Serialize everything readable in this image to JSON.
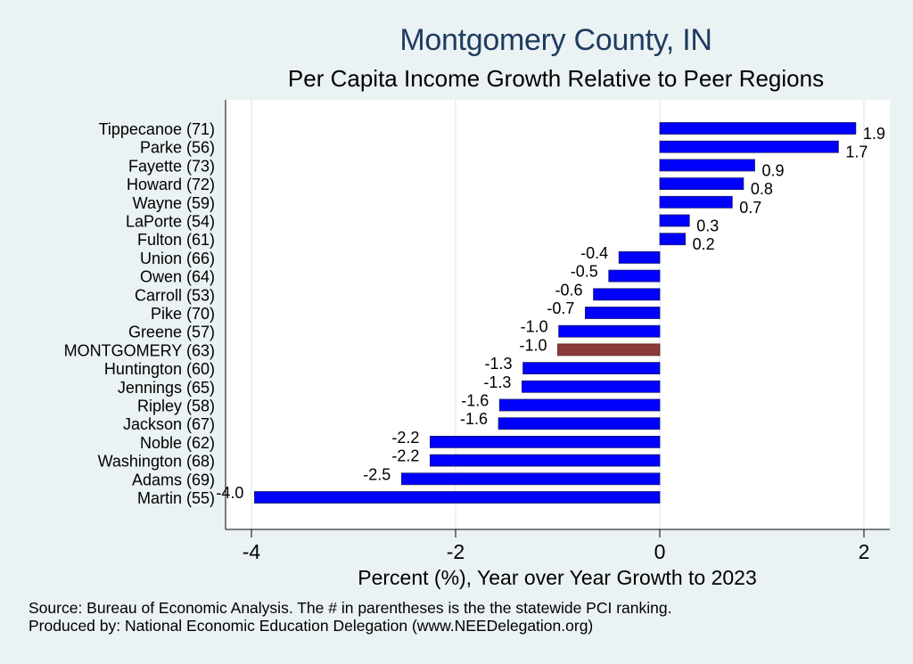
{
  "title": "Montgomery County, IN",
  "subtitle": "Per Capita Income Growth Relative to Peer Regions",
  "footer": {
    "source": "Source: Bureau of Economic Analysis. The # in parentheses is the the statewide PCI ranking.",
    "produced_by": "Produced by: National Economic Education Delegation (www.NEEDelegation.org)"
  },
  "colors": {
    "background": "#eaf2f3",
    "plot_background": "#ffffff",
    "bar": "#0000ff",
    "highlight_bar": "#8b3a3a",
    "title": "#1e3a5f"
  },
  "chart_data": {
    "type": "bar",
    "orientation": "horizontal",
    "title": "Montgomery County, IN",
    "subtitle": "Per Capita Income Growth Relative to Peer Regions",
    "xlabel": "Percent (%), Year over Year Growth to 2023",
    "ylabel": "",
    "xlim": [
      -4.2,
      2.2
    ],
    "xticks": [
      -4,
      -2,
      0,
      2
    ],
    "grid": true,
    "highlight": "MONTGOMERY (63)",
    "categories": [
      "Tippecanoe (71)",
      "Parke (56)",
      "Fayette (73)",
      "Howard (72)",
      "Wayne (59)",
      "LaPorte (54)",
      "Fulton (61)",
      "Union (66)",
      "Owen (64)",
      "Carroll (53)",
      "Pike (70)",
      "Greene (57)",
      "MONTGOMERY (63)",
      "Huntington (60)",
      "Jennings (65)",
      "Ripley (58)",
      "Jackson (67)",
      "Noble (62)",
      "Washington (68)",
      "Adams (69)",
      "Martin (55)"
    ],
    "values": [
      1.92,
      1.75,
      0.93,
      0.82,
      0.71,
      0.29,
      0.25,
      -0.4,
      -0.5,
      -0.65,
      -0.73,
      -0.99,
      -1.0,
      -1.34,
      -1.35,
      -1.57,
      -1.58,
      -2.25,
      -2.25,
      -2.53,
      -3.97
    ],
    "labels": [
      "1.9",
      "1.7",
      "0.9",
      "0.8",
      "0.7",
      "0.3",
      "0.2",
      "-0.4",
      "-0.5",
      "-0.6",
      "-0.7",
      "-1.0",
      "-1.0",
      "-1.3",
      "-1.3",
      "-1.6",
      "-1.6",
      "-2.2",
      "-2.2",
      "-2.5",
      "-4.0"
    ]
  }
}
